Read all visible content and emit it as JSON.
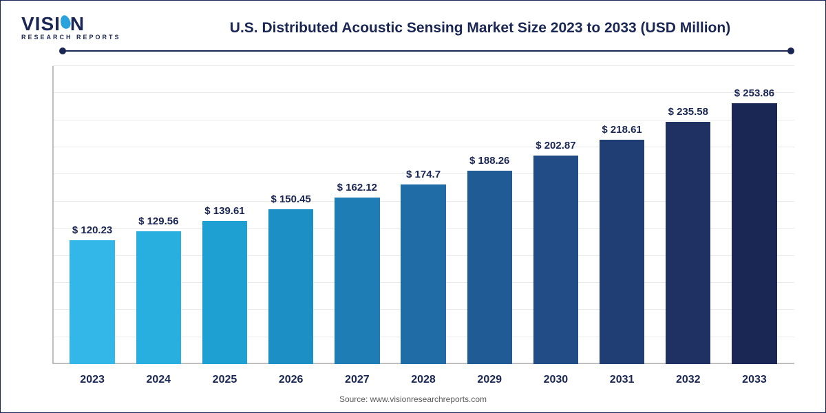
{
  "logo": {
    "text_pre": "VISI",
    "text_post": "N",
    "subtitle": "RESEARCH REPORTS"
  },
  "chart": {
    "type": "bar",
    "title": "U.S. Distributed Acoustic Sensing Market Size 2023 to 2033 (USD Million)",
    "title_fontsize": 21,
    "title_color": "#1a2654",
    "categories": [
      "2023",
      "2024",
      "2025",
      "2026",
      "2027",
      "2028",
      "2029",
      "2030",
      "2031",
      "2032",
      "2033"
    ],
    "values": [
      120.23,
      129.56,
      139.61,
      150.45,
      162.12,
      174.7,
      188.26,
      202.87,
      218.61,
      235.58,
      253.86
    ],
    "value_labels": [
      "$ 120.23",
      "$ 129.56",
      "$ 139.61",
      "$ 150.45",
      "$ 162.12",
      "$ 174.7",
      "$ 188.26",
      "$ 202.87",
      "$ 218.61",
      "$ 235.58",
      "$ 253.86"
    ],
    "bar_colors": [
      "#33b7e8",
      "#29aee0",
      "#1ea0d3",
      "#1c8fc4",
      "#1e7db5",
      "#1f6ca6",
      "#205b96",
      "#214c85",
      "#213e74",
      "#1f3163",
      "#1a2654"
    ],
    "ylim": [
      0,
      290
    ],
    "grid_rows": 11,
    "grid_color": "#e9e9e9",
    "axis_color": "#bfbfbf",
    "background_color": "#ffffff",
    "bar_width_pct": 68,
    "label_fontsize": 15,
    "tick_fontsize": 16,
    "label_color": "#1a2654",
    "rule_color": "#1a2654"
  },
  "source": "Source: www.visionresearchreports.com"
}
